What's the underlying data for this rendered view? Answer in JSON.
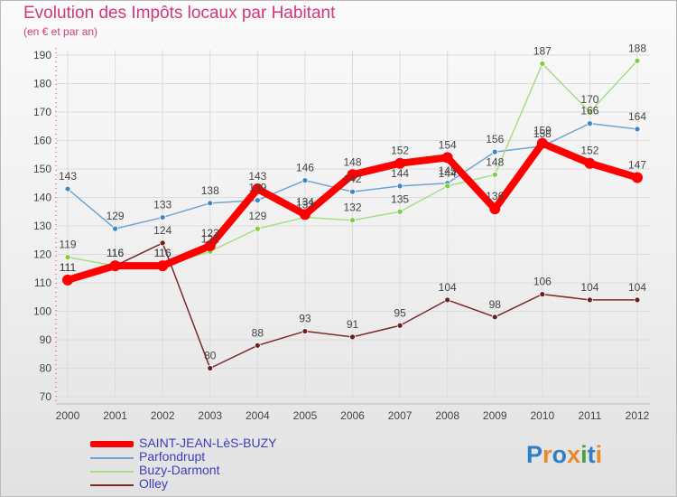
{
  "title": "Evolution des Impôts locaux par Habitant",
  "subtitle": "(en € et par an)",
  "logo": {
    "text": "Proxiti",
    "letter_colors": [
      "#2e7fc4",
      "#e8892c",
      "#2e7fc4",
      "#e8892c",
      "#4aa33b",
      "#2e7fc4",
      "#e8892c"
    ]
  },
  "chart_data": {
    "type": "line",
    "title": "Evolution des Impôts locaux par Habitant",
    "subtitle": "(en € et par an)",
    "xlabel": "",
    "ylabel": "",
    "ylim": [
      70,
      190
    ],
    "yticks": [
      70,
      80,
      90,
      100,
      110,
      120,
      130,
      140,
      150,
      160,
      170,
      180,
      190
    ],
    "grid": true,
    "legend_position": "bottom-left",
    "categories": [
      "2000",
      "2001",
      "2002",
      "2003",
      "2004",
      "2005",
      "2006",
      "2007",
      "2008",
      "2009",
      "2010",
      "2011",
      "2012"
    ],
    "series": [
      {
        "name": "SAINT-JEAN-LèS-BUZY",
        "color": "#ff0000",
        "marker": "#ff0000",
        "emphasis": "thick",
        "values": [
          111,
          116,
          116,
          123,
          143,
          134,
          148,
          152,
          154,
          136,
          159,
          152,
          147
        ],
        "labels": [
          "111",
          "116",
          "116",
          "123",
          "143",
          "134",
          "148",
          "152",
          "154",
          "136",
          "159",
          "152",
          "147"
        ]
      },
      {
        "name": "Parfondrupt",
        "color": "#6ea5d2",
        "marker": "#3f86c4",
        "values": [
          143,
          129,
          133,
          138,
          139,
          146,
          142,
          144,
          145,
          156,
          158,
          166,
          164
        ],
        "labels": [
          "143",
          "129",
          "133",
          "138",
          "139",
          "146",
          "142",
          "144",
          "145",
          "156",
          "158",
          "166",
          "164"
        ]
      },
      {
        "name": "Buzy-Darmont",
        "color": "#a8dd88",
        "marker": "#7fcd3e",
        "values": [
          119,
          116,
          116,
          121,
          129,
          133,
          132,
          135,
          144,
          148,
          187,
          170,
          188
        ],
        "labels": [
          "119",
          "116",
          "116",
          "121",
          "129",
          "133",
          "132",
          "135",
          "144",
          "148",
          "187",
          "170",
          "188"
        ]
      },
      {
        "name": "Olley",
        "color": "#7a2a2a",
        "marker": "#6a1f1f",
        "values": [
          111,
          116,
          124,
          80,
          88,
          93,
          91,
          95,
          104,
          98,
          106,
          104,
          104
        ],
        "labels": [
          "111",
          "116",
          "124",
          "80",
          "88",
          "93",
          "91",
          "95",
          "104",
          "98",
          "106",
          "104",
          "104"
        ]
      }
    ]
  }
}
